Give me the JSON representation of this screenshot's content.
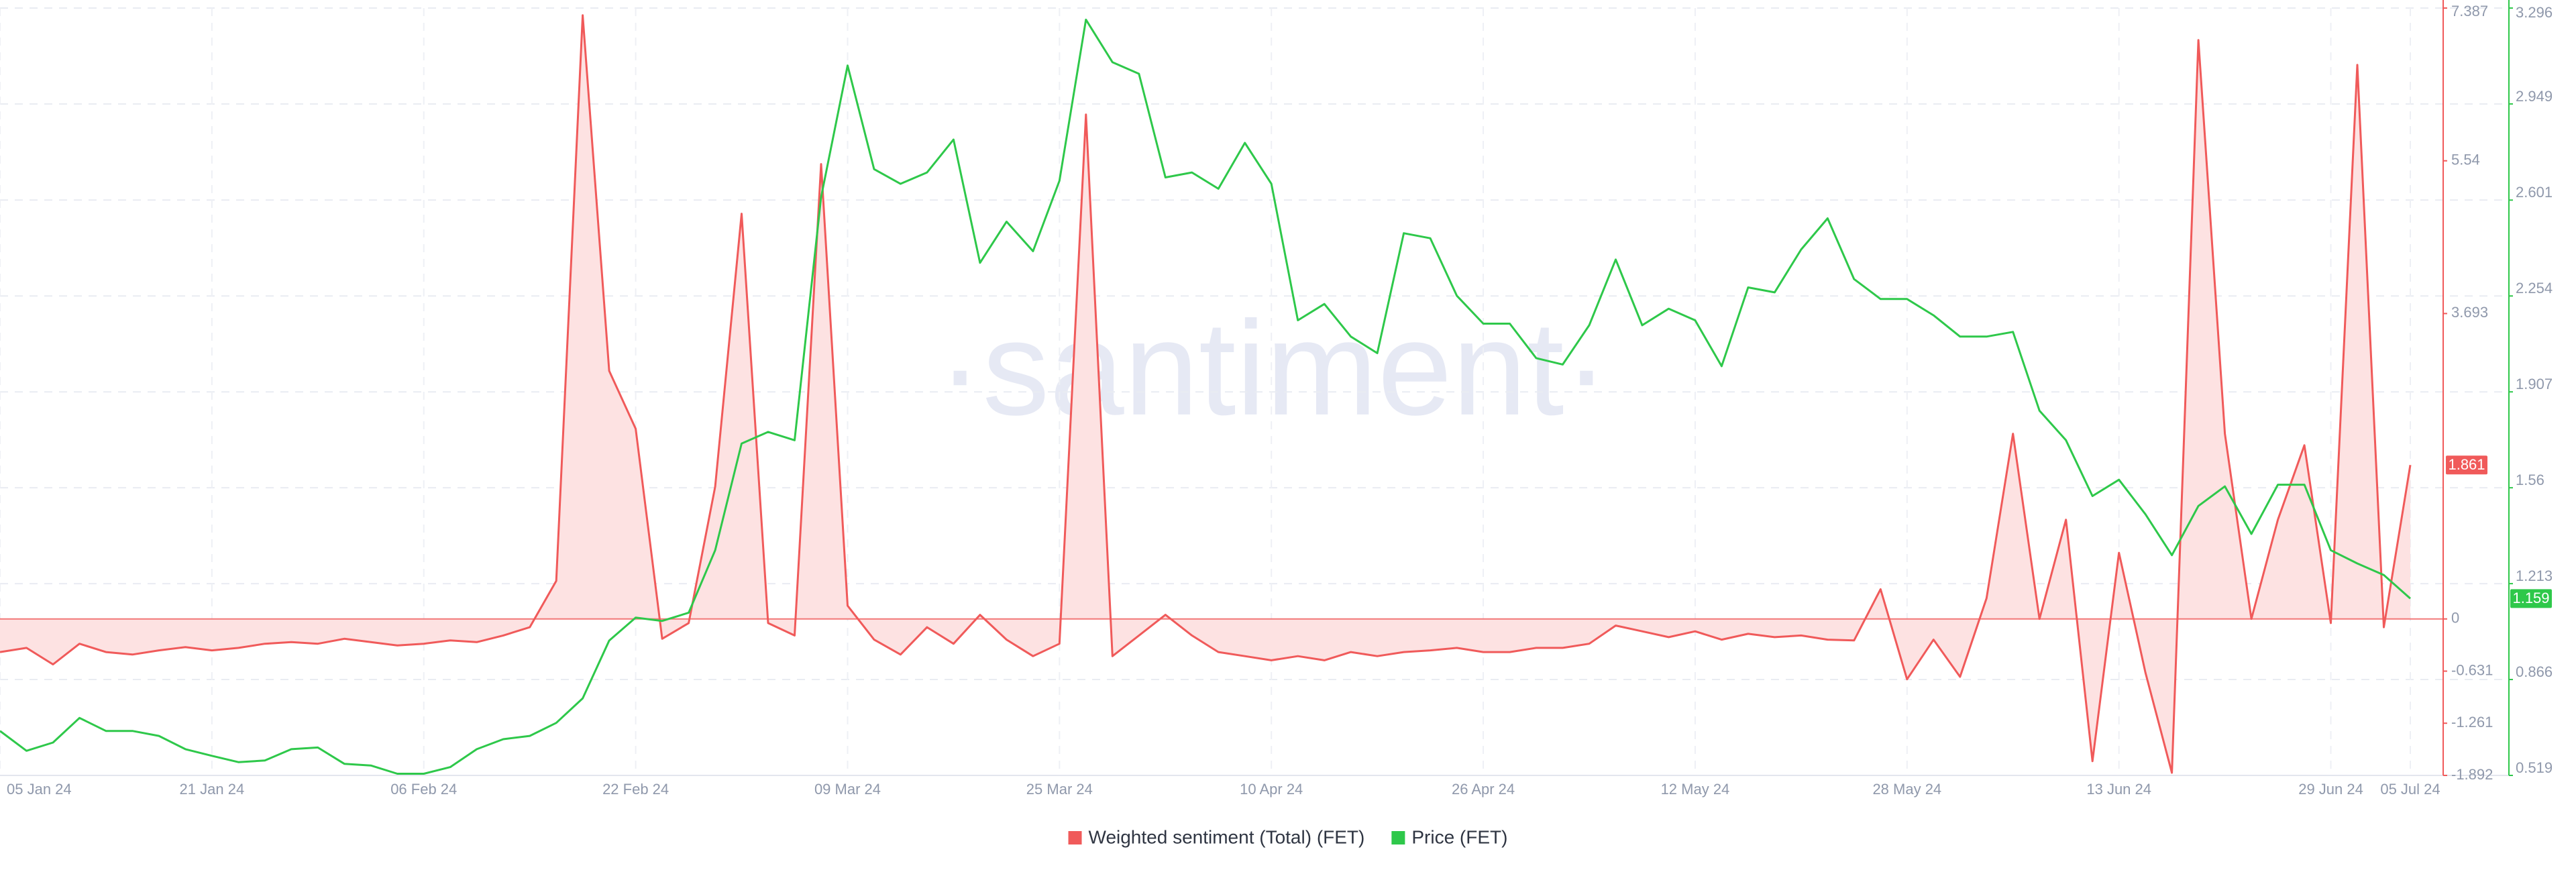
{
  "chart_data": {
    "type": "line",
    "watermark": "·santiment·",
    "x": [
      "05 Jan 24",
      "07 Jan 24",
      "09 Jan 24",
      "11 Jan 24",
      "13 Jan 24",
      "15 Jan 24",
      "17 Jan 24",
      "19 Jan 24",
      "21 Jan 24",
      "23 Jan 24",
      "25 Jan 24",
      "27 Jan 24",
      "29 Jan 24",
      "31 Jan 24",
      "02 Feb 24",
      "04 Feb 24",
      "06 Feb 24",
      "08 Feb 24",
      "10 Feb 24",
      "12 Feb 24",
      "14 Feb 24",
      "16 Feb 24",
      "18 Feb 24",
      "20 Feb 24",
      "22 Feb 24",
      "24 Feb 24",
      "26 Feb 24",
      "28 Feb 24",
      "01 Mar 24",
      "03 Mar 24",
      "05 Mar 24",
      "07 Mar 24",
      "09 Mar 24",
      "11 Mar 24",
      "13 Mar 24",
      "15 Mar 24",
      "17 Mar 24",
      "19 Mar 24",
      "21 Mar 24",
      "23 Mar 24",
      "25 Mar 24",
      "27 Mar 24",
      "29 Mar 24",
      "31 Mar 24",
      "02 Apr 24",
      "04 Apr 24",
      "06 Apr 24",
      "08 Apr 24",
      "10 Apr 24",
      "12 Apr 24",
      "14 Apr 24",
      "16 Apr 24",
      "18 Apr 24",
      "20 Apr 24",
      "22 Apr 24",
      "24 Apr 24",
      "26 Apr 24",
      "28 Apr 24",
      "30 Apr 24",
      "02 May 24",
      "04 May 24",
      "06 May 24",
      "08 May 24",
      "10 May 24",
      "12 May 24",
      "14 May 24",
      "16 May 24",
      "18 May 24",
      "20 May 24",
      "22 May 24",
      "24 May 24",
      "26 May 24",
      "28 May 24",
      "30 May 24",
      "01 Jun 24",
      "03 Jun 24",
      "05 Jun 24",
      "07 Jun 24",
      "09 Jun 24",
      "11 Jun 24",
      "13 Jun 24",
      "15 Jun 24",
      "17 Jun 24",
      "19 Jun 24",
      "21 Jun 24",
      "23 Jun 24",
      "25 Jun 24",
      "27 Jun 24",
      "29 Jun 24",
      "01 Jul 24",
      "03 Jul 24",
      "05 Jul 24"
    ],
    "xticks": [
      "05 Jan 24",
      "21 Jan 24",
      "06 Feb 24",
      "22 Feb 24",
      "09 Mar 24",
      "25 Mar 24",
      "10 Apr 24",
      "26 Apr 24",
      "12 May 24",
      "28 May 24",
      "13 Jun 24",
      "29 Jun 24",
      "05 Jul 24"
    ],
    "ylim": [
      -1.892,
      7.387
    ],
    "yticks": [
      7.387,
      5.54,
      3.693,
      0,
      -0.631,
      -1.261,
      -1.892
    ],
    "y2lim": [
      0.519,
      3.296
    ],
    "y2ticks": [
      3.296,
      2.949,
      2.601,
      2.254,
      1.907,
      1.56,
      1.213,
      0.866,
      0.519
    ],
    "grid": true,
    "legend": "bottom",
    "series": [
      {
        "name": "Weighted sentiment (Total) (FET)",
        "color": "#f05a5a",
        "fill": "#fde2e2",
        "axis": "y",
        "values": [
          -0.4,
          -0.35,
          -0.55,
          -0.3,
          -0.4,
          -0.43,
          -0.38,
          -0.34,
          -0.38,
          -0.35,
          -0.3,
          -0.28,
          -0.3,
          -0.24,
          -0.28,
          -0.32,
          -0.3,
          -0.26,
          -0.28,
          -0.2,
          -0.1,
          0.46,
          7.3,
          3.0,
          2.3,
          -0.24,
          -0.05,
          1.6,
          4.9,
          -0.05,
          -0.2,
          5.5,
          0.16,
          -0.25,
          -0.43,
          -0.1,
          -0.3,
          0.05,
          -0.25,
          -0.45,
          -0.3,
          6.1,
          -0.45,
          -0.2,
          0.05,
          -0.2,
          -0.4,
          -0.45,
          -0.5,
          -0.45,
          -0.5,
          -0.4,
          -0.45,
          -0.4,
          -0.38,
          -0.35,
          -0.4,
          -0.4,
          -0.35,
          -0.35,
          -0.3,
          -0.08,
          -0.15,
          -0.22,
          -0.15,
          -0.25,
          -0.18,
          -0.22,
          -0.2,
          -0.25,
          -0.26,
          0.36,
          -0.73,
          -0.25,
          -0.7,
          0.25,
          2.24,
          0.0,
          1.2,
          -1.72,
          0.8,
          -0.65,
          -1.86,
          7.0,
          2.24,
          0.0,
          1.2,
          2.1,
          -0.05,
          6.7,
          -0.1,
          1.861
        ]
      },
      {
        "name": "Price (FET)",
        "color": "#2ec84a",
        "axis": "y2",
        "values": [
          0.68,
          0.608,
          0.638,
          0.727,
          0.68,
          0.68,
          0.662,
          0.614,
          0.59,
          0.567,
          0.573,
          0.614,
          0.62,
          0.561,
          0.555,
          0.525,
          0.525,
          0.549,
          0.614,
          0.65,
          0.662,
          0.709,
          0.798,
          1.007,
          1.09,
          1.078,
          1.108,
          1.334,
          1.72,
          1.762,
          1.732,
          2.612,
          3.088,
          2.713,
          2.66,
          2.701,
          2.82,
          2.374,
          2.523,
          2.416,
          2.671,
          3.254,
          3.1,
          3.058,
          2.683,
          2.701,
          2.642,
          2.808,
          2.66,
          2.166,
          2.225,
          2.107,
          2.047,
          2.481,
          2.463,
          2.255,
          2.154,
          2.154,
          2.029,
          2.006,
          2.148,
          2.386,
          2.148,
          2.208,
          2.166,
          2.0,
          2.285,
          2.267,
          2.422,
          2.535,
          2.315,
          2.243,
          2.243,
          2.184,
          2.107,
          2.107,
          2.124,
          1.839,
          1.732,
          1.53,
          1.589,
          1.464,
          1.316,
          1.494,
          1.565,
          1.393,
          1.571,
          1.571,
          1.334,
          1.286,
          1.244,
          1.159
        ]
      }
    ]
  }
}
